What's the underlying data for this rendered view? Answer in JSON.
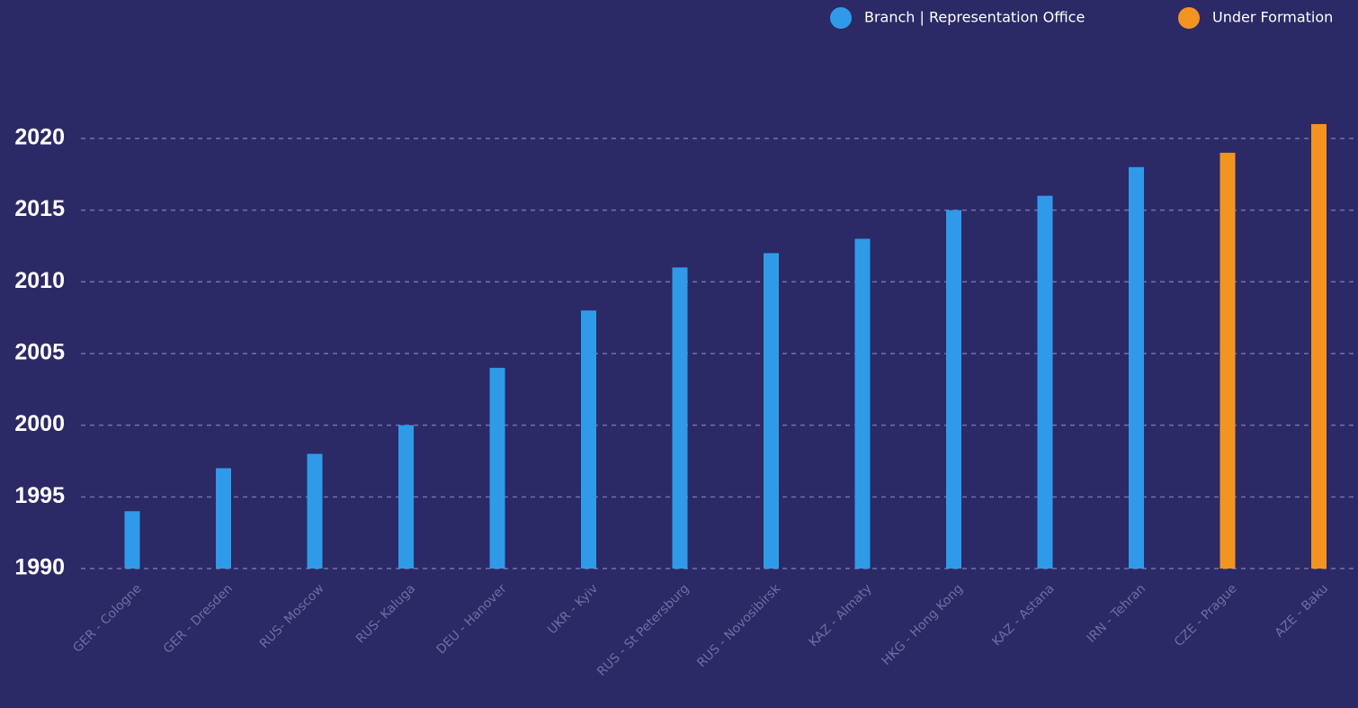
{
  "chart_data": {
    "type": "bar",
    "categories": [
      "GER - Cologne",
      "GER - Dresden",
      "RUS- Moscow",
      "RUS- Kaluga",
      "DEU - Hanover",
      "UKR - Kyiv",
      "RUS - St Petersburg",
      "RUS - Novosibirsk",
      "KAZ - Almaty",
      "HKG - Hong Kong",
      "KAZ - Astana",
      "IRN - Tehran",
      "CZE - Prague",
      "AZE - Baku"
    ],
    "series": [
      {
        "name": "Branch | Representation Office",
        "color": "#2f9be8",
        "values": [
          1994,
          1997,
          1998,
          2000,
          2004,
          2008,
          2011,
          2012,
          2013,
          2015,
          2016,
          2018,
          null,
          null
        ]
      },
      {
        "name": "Under Formation",
        "color": "#f39422",
        "values": [
          null,
          null,
          null,
          null,
          null,
          null,
          null,
          null,
          null,
          null,
          null,
          null,
          2019,
          2021
        ]
      }
    ],
    "ylim": [
      1990,
      2022
    ],
    "yticks": [
      1990,
      1995,
      2000,
      2005,
      2010,
      2015,
      2020
    ],
    "grid": true,
    "legend": "top-right"
  }
}
